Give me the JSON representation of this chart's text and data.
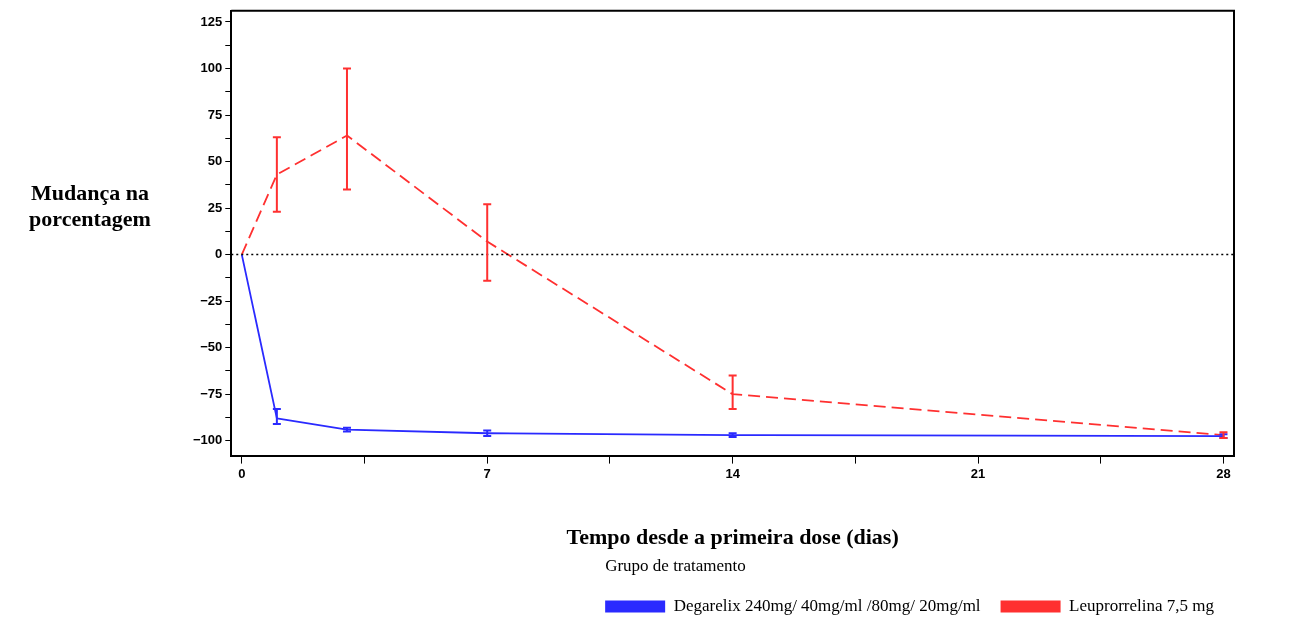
{
  "chart_data": {
    "type": "line",
    "xlabel": "Tempo desde a primeira dose (dias)",
    "ylabel": "Mudança na porcentagem",
    "legend_title": "Grupo de tratamento",
    "xlim": [
      -0.3,
      28.3
    ],
    "xticks": [
      0,
      {
        "value": 3.5,
        "label": null
      },
      7,
      {
        "value": 10.5,
        "label": null
      },
      14,
      {
        "value": 17.5,
        "label": null
      },
      21,
      {
        "value": 24.5,
        "label": null
      },
      28
    ],
    "ylim": [
      -108,
      131
    ],
    "yticks": [
      -100,
      {
        "value": -87.5,
        "label": null
      },
      -75,
      {
        "value": -62.5,
        "label": null
      },
      -50,
      {
        "value": -37.5,
        "label": null
      },
      -25,
      {
        "value": -12.5,
        "label": null
      },
      0,
      {
        "value": 12.5,
        "label": null
      },
      25,
      {
        "value": 37.5,
        "label": null
      },
      50,
      {
        "value": 62.5,
        "label": null
      },
      75,
      {
        "value": 87.5,
        "label": null
      },
      100,
      {
        "value": 112.5,
        "label": null
      },
      125
    ],
    "x": [
      0,
      1,
      3,
      7,
      14,
      28
    ],
    "series": [
      {
        "name": "Degarelix 240mg/ 40mg/ml /80mg/ 20mg/ml",
        "color": "#2a2aff",
        "line_style": "solid",
        "values": [
          0,
          -88,
          -94,
          -96,
          -97,
          -97.5
        ],
        "errors": [
          null,
          [
            -91,
            -83
          ],
          [
            -95,
            -93
          ],
          [
            -97.5,
            -94.5
          ],
          [
            -98,
            -96
          ],
          [
            -98.5,
            -96.5
          ]
        ]
      },
      {
        "name": "Leuprorrelina 7,5 mg",
        "color": "#ff3030",
        "line_style": "dashed",
        "values": [
          0,
          43,
          64,
          7,
          -75,
          -97
        ],
        "errors": [
          null,
          [
            23,
            63
          ],
          [
            35,
            100
          ],
          [
            -14,
            27
          ],
          [
            -83,
            -65
          ],
          [
            -98.5,
            -95.5
          ]
        ]
      }
    ],
    "ref_lines": [
      {
        "axis": "y",
        "value": 0,
        "color": "#000000",
        "line_style": "dotted"
      }
    ],
    "grid": false,
    "legend": "bottom",
    "marker": "none"
  }
}
